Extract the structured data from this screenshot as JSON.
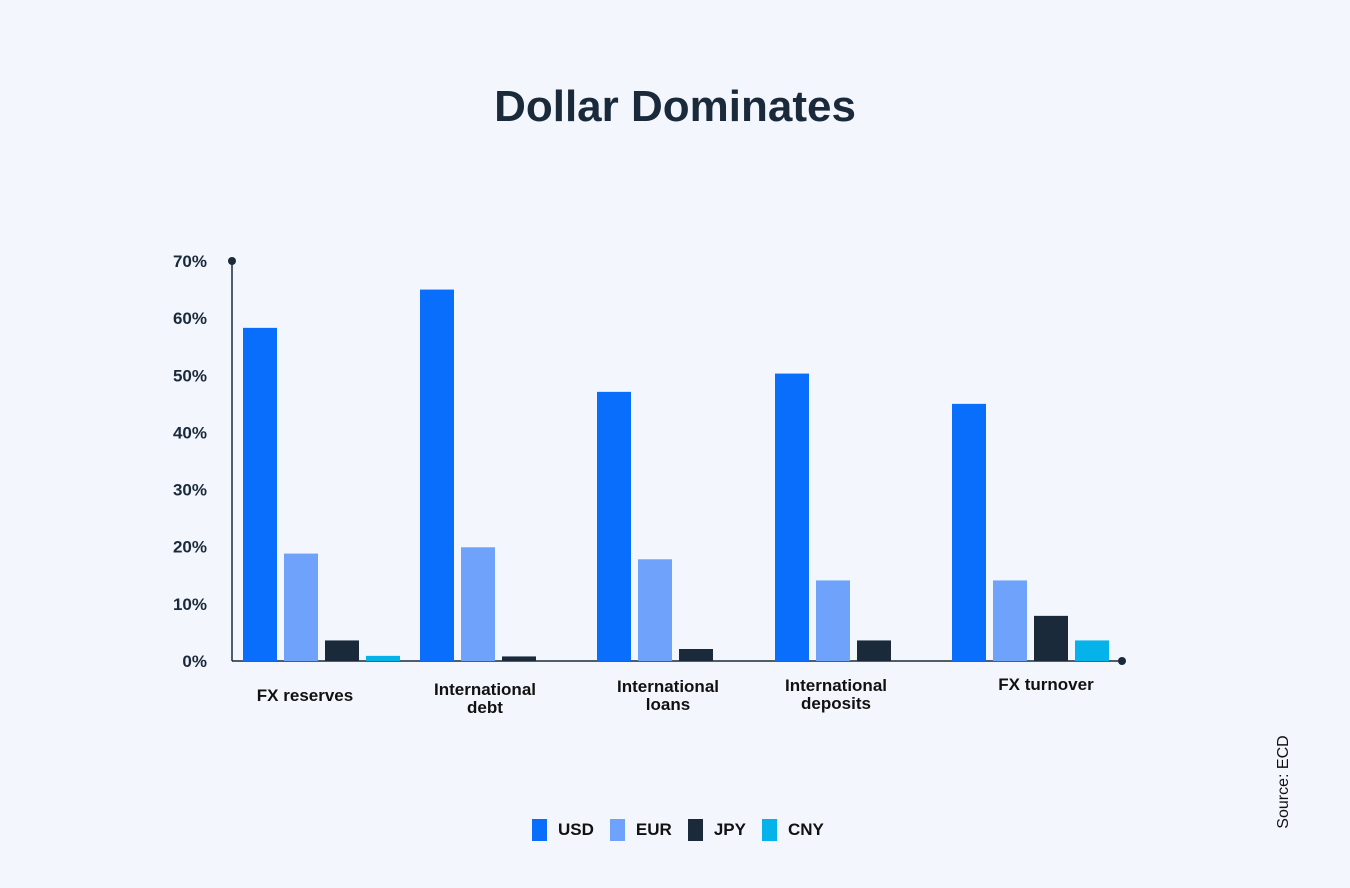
{
  "chart_data": {
    "type": "bar",
    "title": "Dollar Dominates",
    "categories": [
      [
        "FX reserves"
      ],
      [
        "International",
        "debt"
      ],
      [
        "International",
        "loans"
      ],
      [
        "International",
        "deposits"
      ],
      [
        "FX turnover"
      ]
    ],
    "series": [
      {
        "name": "USD",
        "color": "#0a6efd",
        "values": [
          58.3,
          65,
          47.1,
          50.3,
          45
        ]
      },
      {
        "name": "EUR",
        "color": "#6ea2fb",
        "values": [
          18.8,
          19.9,
          17.8,
          14.1,
          14.1
        ]
      },
      {
        "name": "JPY",
        "color": "#1b2a3b",
        "values": [
          3.6,
          0.8,
          2.1,
          3.6,
          7.9
        ]
      },
      {
        "name": "CNY",
        "color": "#06b2ea",
        "values": [
          0.9,
          0,
          0,
          0,
          3.6
        ]
      }
    ],
    "ylim": [
      0,
      70
    ],
    "yticks": [
      "70%",
      "60%",
      "50%",
      "40%",
      "30%",
      "20%",
      "10%",
      "0%"
    ],
    "legend_position": "bottom",
    "grid": false
  },
  "source": "Source: ECD"
}
